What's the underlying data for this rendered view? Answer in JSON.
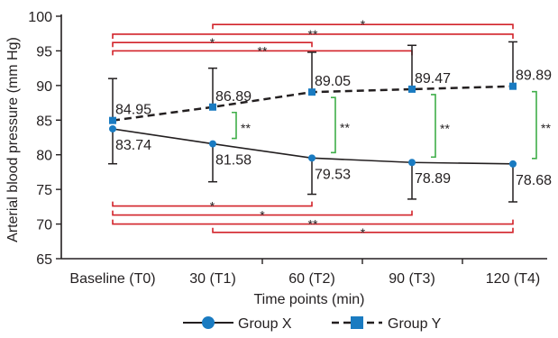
{
  "chart_data": {
    "type": "line",
    "xlabel": "Time points (min)",
    "ylabel": "Arterial blood pressure (mm Hg)",
    "ylim": [
      65,
      100
    ],
    "yticks": [
      65,
      70,
      75,
      80,
      85,
      90,
      95,
      100
    ],
    "categories": [
      "Baseline (T0)",
      "30 (T1)",
      "60 (T2)",
      "90 (T3)",
      "120 (T4)"
    ],
    "grid": false,
    "legend_position": "bottom",
    "series": [
      {
        "name": "Group X",
        "values": [
          83.74,
          81.58,
          79.53,
          78.89,
          78.68
        ],
        "labels": [
          "83.74",
          "81.58",
          "79.53",
          "78.89",
          "78.68"
        ],
        "error_low": [
          78.7,
          76.1,
          74.3,
          73.6,
          73.2
        ],
        "error_high": [
          83.74,
          81.58,
          79.53,
          78.89,
          78.68
        ],
        "line_style": "solid",
        "marker": "circle",
        "marker_color": "#1a7bc1",
        "line_color": "#231f20"
      },
      {
        "name": "Group Y",
        "values": [
          84.95,
          86.89,
          89.05,
          89.47,
          89.89
        ],
        "labels": [
          "84.95",
          "86.89",
          "89.05",
          "89.47",
          "89.89"
        ],
        "error_low": [
          84.95,
          86.89,
          89.05,
          89.47,
          89.89
        ],
        "error_high": [
          91.0,
          92.5,
          94.8,
          95.8,
          96.3
        ],
        "line_style": "dashed",
        "marker": "square",
        "marker_color": "#1a7bc1",
        "line_color": "#231f20"
      }
    ],
    "between_group_significance": [
      {
        "category_index": 1,
        "label": "**"
      },
      {
        "category_index": 2,
        "label": "**"
      },
      {
        "category_index": 3,
        "label": "**"
      },
      {
        "category_index": 4,
        "label": "**"
      }
    ],
    "within_group_brackets": {
      "group_y": [
        {
          "from": 1,
          "to": 4,
          "y": 98.8,
          "label": "*"
        },
        {
          "from": 0,
          "to": 4,
          "y": 97.4,
          "label": "**"
        },
        {
          "from": 0,
          "to": 2,
          "y": 96.2,
          "label": "*"
        },
        {
          "from": 0,
          "to": 3,
          "y": 95.0,
          "label": "**"
        }
      ],
      "group_x": [
        {
          "from": 0,
          "to": 2,
          "y": 72.6,
          "label": "*"
        },
        {
          "from": 0,
          "to": 3,
          "y": 71.3,
          "label": "*"
        },
        {
          "from": 0,
          "to": 4,
          "y": 70.0,
          "label": "**"
        },
        {
          "from": 1,
          "to": 4,
          "y": 68.8,
          "label": "*"
        }
      ]
    },
    "colors": {
      "axis": "#231f20",
      "bracket": "#d2232a",
      "between_bracket": "#3fae49",
      "marker": "#1a7bc1"
    }
  }
}
